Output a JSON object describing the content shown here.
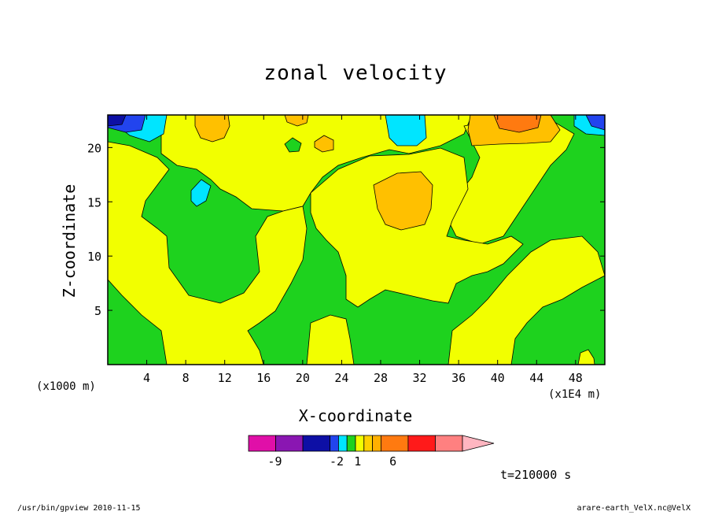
{
  "window": {
    "footer_left": "/usr/bin/gpview  2010-11-15",
    "footer_right": "arare-earth_VelX.nc@VelX",
    "timestamp": "t=210000 s"
  },
  "chart_data": {
    "type": "heatmap",
    "title": "zonal velocity",
    "xlabel": "X-coordinate",
    "ylabel": "Z-coordinate",
    "x_unit_label": "(x1000 m)",
    "x_unit_label_right": "(x1E4 m)",
    "xlim": [
      0,
      51
    ],
    "ylim": [
      0,
      23
    ],
    "x_ticks": [
      4,
      8,
      12,
      16,
      20,
      24,
      28,
      32,
      36,
      40,
      44,
      48
    ],
    "y_ticks": [
      5,
      10,
      15,
      20
    ],
    "colorbar": {
      "levels": [
        {
          "color": "#e00fa8"
        },
        {
          "color": "#8a16b2"
        },
        {
          "color": "#0d0fa5"
        },
        {
          "color": "#2244ee"
        },
        {
          "color": "#00e5ff"
        },
        {
          "color": "#1ed21e"
        },
        {
          "color": "#f2ff00"
        },
        {
          "color": "#ffd000"
        },
        {
          "color": "#ffb000"
        },
        {
          "color": "#ff7a10"
        },
        {
          "color": "#ff1a1a"
        },
        {
          "color": "#ff8080"
        }
      ],
      "over_color": "#ffb6c1",
      "tick_labels": [
        {
          "label": "-9",
          "pos": 0.123
        },
        {
          "label": "-2",
          "pos": 0.412
        },
        {
          "label": "1",
          "pos": 0.51
        },
        {
          "label": "6",
          "pos": 0.675
        }
      ]
    },
    "colors": {
      "green": "#1ed21e",
      "yellow": "#f2ff00",
      "orange": "#ffc000",
      "dark_orange": "#ff7a10",
      "cyan": "#00e5ff",
      "blue": "#2244ee",
      "dark_blue": "#0d0fa5"
    }
  }
}
